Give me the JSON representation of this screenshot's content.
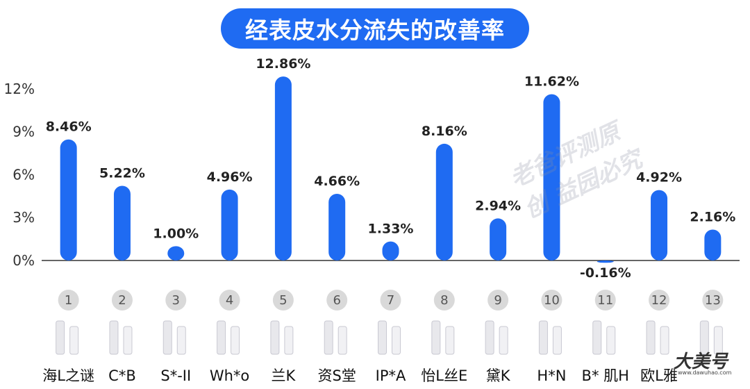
{
  "chart_data": {
    "type": "bar",
    "title": "经表皮水分流失的改善率",
    "yticks": [
      "0%",
      "3%",
      "6%",
      "9%",
      "12%"
    ],
    "ylim": [
      -0.5,
      13.5
    ],
    "index_labels": [
      "1",
      "2",
      "3",
      "4",
      "5",
      "6",
      "7",
      "8",
      "9",
      "10",
      "11",
      "12",
      "13"
    ],
    "categories": [
      "海L之谜",
      "C*B",
      "S*-II",
      "Wh*o",
      "兰K",
      "资S堂",
      "IP*A",
      "怡L丝E",
      "黛K",
      "H*N",
      "B* 肌H",
      "欧L雅",
      ""
    ],
    "values": [
      8.46,
      5.22,
      1.0,
      4.96,
      12.86,
      4.66,
      1.33,
      8.16,
      2.94,
      11.62,
      -0.16,
      4.92,
      2.16
    ],
    "data_labels": [
      "8.46%",
      "5.22%",
      "1.00%",
      "4.96%",
      "12.86%",
      "4.66%",
      "1.33%",
      "8.16%",
      "2.94%",
      "11.62%",
      "-0.16%",
      "4.92%",
      "2.16%"
    ],
    "grid": false
  },
  "colors": {
    "bar": "#1f6bf2",
    "index_circle": "#d9d9d9",
    "axis": "#333333"
  },
  "watermark": {
    "center": "老爸评测原创 益园必究",
    "corner": "大美号",
    "corner_sub": "www.dawuhao.com"
  }
}
